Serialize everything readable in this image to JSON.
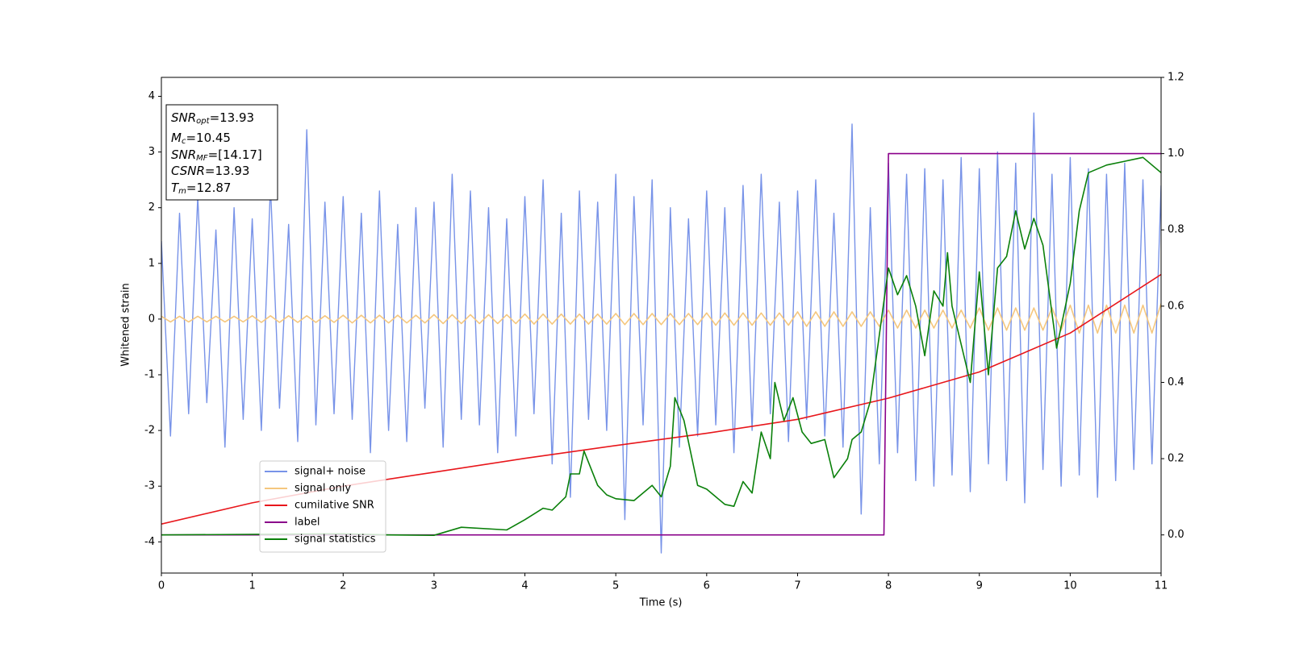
{
  "chart_data": {
    "type": "line",
    "xlabel": "Time (s)",
    "ylabel": "Whitened strain",
    "xlim": [
      0,
      11
    ],
    "xticks": [
      0,
      1,
      2,
      3,
      4,
      5,
      6,
      7,
      8,
      9,
      10,
      11
    ],
    "ylim": [
      -4.56,
      4.34
    ],
    "yticks": [
      -4,
      -3,
      -2,
      -1,
      0,
      1,
      2,
      3,
      4
    ],
    "y2lim": [
      -0.1,
      1.2
    ],
    "y2ticks": [
      {
        "value": 0,
        "label": "0.0"
      },
      {
        "value": 0.2,
        "label": "0.2"
      },
      {
        "value": 0.4,
        "label": "0.4"
      },
      {
        "value": 0.6,
        "label": "0.6"
      },
      {
        "value": 0.8,
        "label": "0.8"
      },
      {
        "value": 1,
        "label": "1.0"
      },
      {
        "value": 1.2,
        "label": "1.2"
      }
    ],
    "legend": "lower left",
    "annotations": [
      {
        "text": "SNR",
        "sub": "opt",
        "rest": "=13.93"
      },
      {
        "text": "M",
        "sub": "c",
        "rest": "=10.45"
      },
      {
        "text": "SNR",
        "sub": "MF",
        "rest": "=[14.17]"
      },
      {
        "text": "CSNR",
        "sub": "",
        "rest": "=13.93"
      },
      {
        "text": "T",
        "sub": "m",
        "rest": "=12.87"
      }
    ],
    "x": [
      0,
      0.1,
      0.2,
      0.3,
      0.4,
      0.5,
      0.6,
      0.7,
      0.8,
      0.9,
      1,
      1.1,
      1.2,
      1.3,
      1.4,
      1.5,
      1.6,
      1.7,
      1.8,
      1.9,
      2,
      2.1,
      2.2,
      2.3,
      2.4,
      2.5,
      2.6,
      2.7,
      2.8,
      2.9,
      3,
      3.1,
      3.2,
      3.3,
      3.4,
      3.5,
      3.6,
      3.7,
      3.8,
      3.9,
      4,
      4.1,
      4.2,
      4.3,
      4.4,
      4.5,
      4.6,
      4.7,
      4.8,
      4.9,
      5,
      5.1,
      5.2,
      5.3,
      5.4,
      5.5,
      5.6,
      5.7,
      5.8,
      5.9,
      6,
      6.1,
      6.2,
      6.3,
      6.4,
      6.5,
      6.6,
      6.7,
      6.8,
      6.9,
      7,
      7.1,
      7.2,
      7.3,
      7.4,
      7.5,
      7.6,
      7.7,
      7.8,
      7.9,
      8,
      8.1,
      8.2,
      8.3,
      8.4,
      8.5,
      8.6,
      8.7,
      8.8,
      8.9,
      9,
      9.1,
      9.2,
      9.3,
      9.4,
      9.5,
      9.6,
      9.7,
      9.8,
      9.9,
      10,
      10.1,
      10.2,
      10.3,
      10.4,
      10.5,
      10.6,
      10.7,
      10.8,
      10.9,
      11
    ],
    "series": [
      {
        "name": "signal+ noise",
        "color": "#7893e8",
        "values": [
          1.4,
          -2.1,
          1.9,
          -1.7,
          2.2,
          -1.5,
          1.6,
          -2.3,
          2.0,
          -1.8,
          1.8,
          -2.0,
          2.4,
          -1.6,
          1.7,
          -2.2,
          3.4,
          -1.9,
          2.1,
          -1.7,
          2.2,
          -1.8,
          1.9,
          -2.4,
          2.3,
          -2.0,
          1.7,
          -2.2,
          2.0,
          -1.6,
          2.1,
          -2.3,
          2.6,
          -1.8,
          2.3,
          -1.9,
          2.0,
          -2.4,
          1.8,
          -2.1,
          2.2,
          -1.7,
          2.5,
          -2.6,
          1.9,
          -3.2,
          2.3,
          -1.8,
          2.1,
          -2.0,
          2.6,
          -3.6,
          2.2,
          -1.9,
          2.5,
          -4.2,
          2.0,
          -2.3,
          1.8,
          -2.1,
          2.3,
          -1.9,
          2.0,
          -2.4,
          2.4,
          -2.0,
          2.6,
          -1.7,
          2.1,
          -2.2,
          2.3,
          -1.8,
          2.5,
          -2.1,
          1.9,
          -2.3,
          3.5,
          -3.5,
          2.0,
          -2.6,
          2.8,
          -2.4,
          2.6,
          -2.9,
          2.7,
          -3.0,
          2.5,
          -2.8,
          2.9,
          -3.1,
          2.7,
          -2.6,
          3.0,
          -2.9,
          2.8,
          -3.3,
          3.7,
          -2.7,
          2.6,
          -3.0,
          2.9,
          -2.8,
          2.7,
          -3.2,
          2.6,
          -2.9,
          2.8,
          -2.7,
          2.5,
          -2.6,
          2.4
        ]
      },
      {
        "name": "signal only",
        "color": "#f5c77e",
        "values": [
          0.05,
          -0.05,
          0.05,
          -0.05,
          0.05,
          -0.05,
          0.05,
          -0.05,
          0.05,
          -0.05,
          0.06,
          -0.06,
          0.06,
          -0.06,
          0.06,
          -0.06,
          0.06,
          -0.06,
          0.06,
          -0.06,
          0.07,
          -0.07,
          0.07,
          -0.07,
          0.07,
          -0.07,
          0.07,
          -0.07,
          0.07,
          -0.07,
          0.08,
          -0.08,
          0.08,
          -0.08,
          0.08,
          -0.08,
          0.08,
          -0.08,
          0.08,
          -0.08,
          0.09,
          -0.09,
          0.09,
          -0.09,
          0.09,
          -0.09,
          0.09,
          -0.09,
          0.09,
          -0.09,
          0.1,
          -0.1,
          0.1,
          -0.1,
          0.1,
          -0.1,
          0.1,
          -0.1,
          0.1,
          -0.1,
          0.11,
          -0.11,
          0.11,
          -0.11,
          0.11,
          -0.11,
          0.11,
          -0.11,
          0.11,
          -0.11,
          0.13,
          -0.13,
          0.13,
          -0.13,
          0.13,
          -0.13,
          0.13,
          -0.13,
          0.13,
          -0.13,
          0.16,
          -0.16,
          0.16,
          -0.16,
          0.16,
          -0.16,
          0.16,
          -0.16,
          0.16,
          -0.16,
          0.2,
          -0.2,
          0.2,
          -0.2,
          0.2,
          -0.2,
          0.2,
          -0.2,
          0.2,
          -0.2,
          0.25,
          -0.25,
          0.25,
          -0.25,
          0.25,
          -0.25,
          0.25,
          -0.25,
          0.25,
          -0.25,
          0.28
        ]
      },
      {
        "name": "cumilative SNR",
        "color": "#e8161b",
        "x": [
          0,
          1,
          2,
          3,
          4,
          5,
          6,
          7,
          8,
          9,
          10,
          11
        ],
        "values": [
          -3.68,
          -3.3,
          -3.0,
          -2.75,
          -2.5,
          -2.27,
          -2.05,
          -1.8,
          -1.42,
          -0.95,
          -0.25,
          0.8
        ]
      },
      {
        "name": "label",
        "color": "#8a008a",
        "axis": "y2",
        "x": [
          0,
          7.95,
          8.0,
          11
        ],
        "values": [
          0,
          0,
          1,
          1
        ]
      },
      {
        "name": "signal statistics",
        "color": "#0a800a",
        "axis": "y2",
        "x": [
          0,
          2,
          2.5,
          3,
          3.3,
          3.8,
          4,
          4.2,
          4.3,
          4.45,
          4.5,
          4.6,
          4.65,
          4.8,
          4.9,
          5.0,
          5.2,
          5.4,
          5.5,
          5.6,
          5.65,
          5.75,
          5.9,
          6.0,
          6.2,
          6.3,
          6.4,
          6.5,
          6.6,
          6.7,
          6.75,
          6.85,
          6.95,
          7.05,
          7.15,
          7.3,
          7.4,
          7.55,
          7.6,
          7.7,
          7.8,
          8.0,
          8.1,
          8.2,
          8.3,
          8.4,
          8.5,
          8.6,
          8.65,
          8.7,
          8.9,
          9.0,
          9.1,
          9.2,
          9.3,
          9.4,
          9.5,
          9.6,
          9.7,
          9.85,
          10.0,
          10.1,
          10.2,
          10.4,
          10.6,
          10.8,
          11
        ],
        "values": [
          0,
          0.003,
          0,
          -0.001,
          0.02,
          0.013,
          0.04,
          0.07,
          0.065,
          0.1,
          0.16,
          0.16,
          0.22,
          0.13,
          0.105,
          0.095,
          0.09,
          0.13,
          0.1,
          0.18,
          0.36,
          0.3,
          0.13,
          0.12,
          0.08,
          0.075,
          0.14,
          0.11,
          0.27,
          0.2,
          0.4,
          0.3,
          0.36,
          0.27,
          0.24,
          0.25,
          0.15,
          0.2,
          0.25,
          0.27,
          0.35,
          0.7,
          0.63,
          0.68,
          0.6,
          0.47,
          0.64,
          0.6,
          0.74,
          0.6,
          0.4,
          0.69,
          0.42,
          0.7,
          0.73,
          0.85,
          0.75,
          0.83,
          0.76,
          0.49,
          0.66,
          0.85,
          0.95,
          0.97,
          0.98,
          0.99,
          0.95
        ]
      }
    ]
  }
}
